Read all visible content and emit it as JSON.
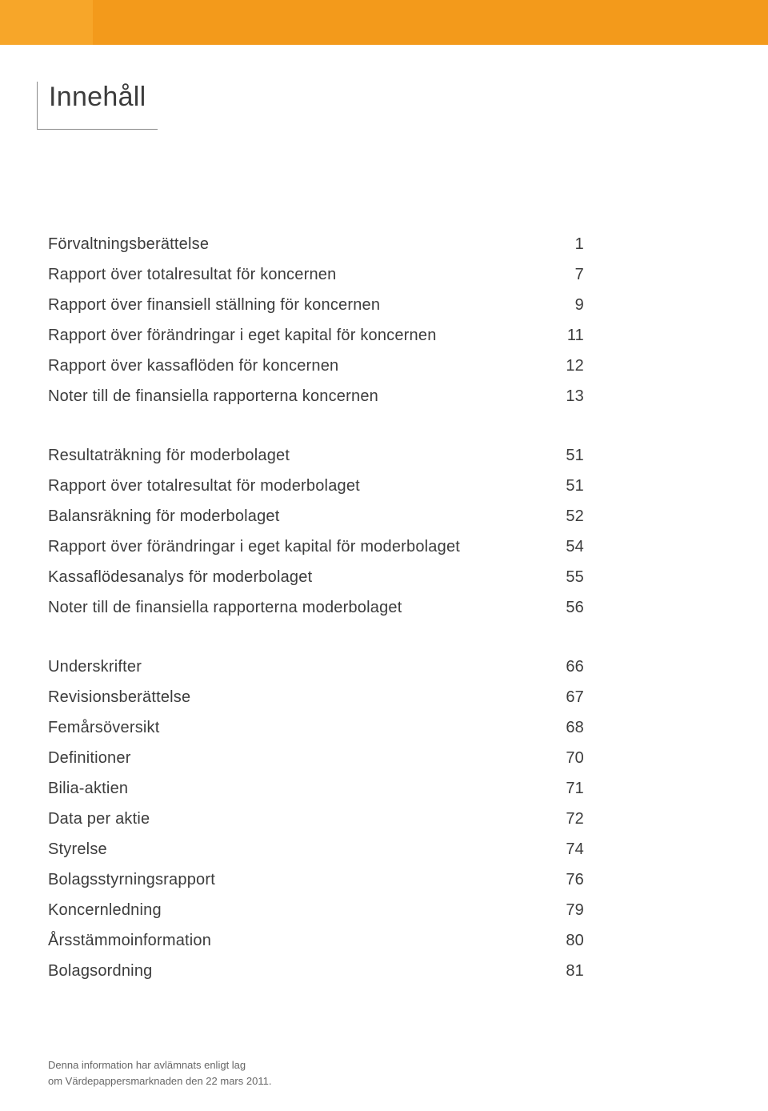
{
  "banner": {
    "color": "#f39a1b",
    "inner_color": "#f7a629"
  },
  "title": "Innehåll",
  "toc": {
    "groups": [
      [
        {
          "label": "Förvaltningsberättelse",
          "page": "1"
        },
        {
          "label": "Rapport över totalresultat för koncernen",
          "page": "7"
        },
        {
          "label": "Rapport över finansiell ställning för koncernen",
          "page": "9"
        },
        {
          "label": "Rapport över förändringar i eget kapital för koncernen",
          "page": "11"
        },
        {
          "label": "Rapport över kassaflöden för koncernen",
          "page": "12"
        },
        {
          "label": "Noter till de finansiella rapporterna koncernen",
          "page": "13"
        }
      ],
      [
        {
          "label": "Resultaträkning för moderbolaget",
          "page": "51"
        },
        {
          "label": "Rapport över totalresultat för moderbolaget",
          "page": "51"
        },
        {
          "label": "Balansräkning för moderbolaget",
          "page": "52"
        },
        {
          "label": "Rapport över förändringar i eget kapital för moderbolaget",
          "page": "54"
        },
        {
          "label": "Kassaflödesanalys för moderbolaget",
          "page": "55"
        },
        {
          "label": "Noter till de finansiella rapporterna moderbolaget",
          "page": "56"
        }
      ],
      [
        {
          "label": "Underskrifter",
          "page": "66"
        },
        {
          "label": "Revisionsberättelse",
          "page": "67"
        },
        {
          "label": "Femårsöversikt",
          "page": "68"
        },
        {
          "label": "Definitioner",
          "page": "70"
        },
        {
          "label": "Bilia-aktien",
          "page": "71"
        },
        {
          "label": "Data per aktie",
          "page": "72"
        },
        {
          "label": "Styrelse",
          "page": "74"
        },
        {
          "label": "Bolagsstyrningsrapport",
          "page": "76"
        },
        {
          "label": "Koncernledning",
          "page": "79"
        },
        {
          "label": "Årsstämmoinformation",
          "page": "80"
        },
        {
          "label": "Bolagsordning",
          "page": "81"
        }
      ]
    ]
  },
  "footer": {
    "line1": "Denna information har avlämnats enligt lag",
    "line2": "om Värdepappersmarknaden den 22 mars 2011."
  },
  "style": {
    "text_color": "#3c3c3c",
    "footer_color": "#666666",
    "rule_color": "#8a8a8a",
    "background": "#ffffff",
    "title_fontsize": 34,
    "toc_fontsize": 20,
    "footer_fontsize": 13
  }
}
